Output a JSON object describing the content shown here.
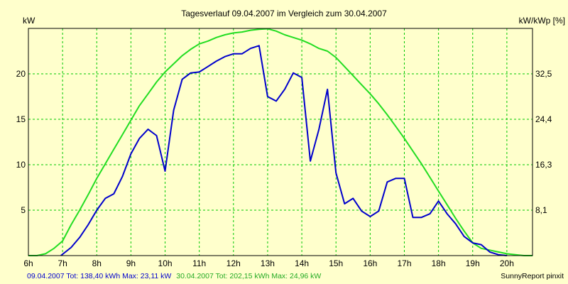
{
  "chart_data": {
    "type": "line",
    "title": "Tagesverlauf 09.04.2007 im Vergleich zum 30.04.2007",
    "ylabel_left": "kW",
    "ylabel_right": "kW/kWp [%]",
    "xlim": [
      6,
      20.75
    ],
    "ylim": [
      0,
      25
    ],
    "x_ticks": [
      "6h",
      "7h",
      "8h",
      "9h",
      "10h",
      "11h",
      "12h",
      "13h",
      "14h",
      "15h",
      "16h",
      "17h",
      "18h",
      "19h",
      "20h"
    ],
    "y_ticks_left": [
      "5",
      "10",
      "15",
      "20"
    ],
    "y_ticks_right": [
      "8,1",
      "16,3",
      "24,4",
      "32,5"
    ],
    "y_ticks_right_values": [
      5,
      10,
      15,
      20
    ],
    "grid": true,
    "colors": {
      "background": "#ffffcc",
      "plot_border": "#000000",
      "grid": "#00c800",
      "series_1": "#0000cc",
      "series_2": "#22dd22"
    },
    "series": [
      {
        "name": "09.04.2007",
        "color": "#0000cc",
        "x": [
          6.95,
          7.25,
          7.5,
          7.75,
          8.0,
          8.25,
          8.5,
          8.75,
          9.0,
          9.25,
          9.5,
          9.75,
          10.0,
          10.25,
          10.5,
          10.75,
          11.0,
          11.25,
          11.5,
          11.75,
          12.0,
          12.25,
          12.5,
          12.75,
          13.0,
          13.25,
          13.5,
          13.75,
          14.0,
          14.25,
          14.5,
          14.75,
          15.0,
          15.25,
          15.5,
          15.75,
          16.0,
          16.25,
          16.5,
          16.75,
          17.0,
          17.25,
          17.5,
          17.75,
          18.0,
          18.25,
          18.5,
          18.75,
          19.0,
          19.25,
          19.5,
          19.75,
          20.0
        ],
        "y": [
          0,
          0.9,
          2.0,
          3.4,
          5.0,
          6.3,
          6.8,
          8.7,
          11.2,
          12.9,
          13.9,
          13.2,
          9.3,
          16.0,
          19.4,
          20.1,
          20.2,
          20.8,
          21.4,
          21.9,
          22.2,
          22.2,
          22.8,
          23.1,
          17.5,
          17.0,
          18.3,
          20.1,
          19.6,
          10.4,
          13.9,
          18.3,
          9.1,
          5.7,
          6.3,
          4.9,
          4.3,
          4.9,
          8.1,
          8.5,
          8.5,
          4.2,
          4.2,
          4.6,
          6.0,
          4.6,
          3.5,
          2.1,
          1.4,
          1.2,
          0.4,
          0.1,
          0
        ]
      },
      {
        "name": "30.04.2007",
        "color": "#22dd22",
        "x": [
          6.0,
          6.25,
          6.5,
          6.75,
          7.0,
          7.25,
          7.5,
          7.75,
          8.0,
          8.25,
          8.5,
          8.75,
          9.0,
          9.25,
          9.5,
          9.75,
          10.0,
          10.25,
          10.5,
          10.75,
          11.0,
          11.25,
          11.5,
          11.75,
          12.0,
          12.25,
          12.5,
          12.75,
          13.0,
          13.25,
          13.5,
          13.75,
          14.0,
          14.25,
          14.5,
          14.75,
          15.0,
          15.25,
          15.5,
          15.75,
          16.0,
          16.25,
          16.5,
          16.75,
          17.0,
          17.25,
          17.5,
          17.75,
          18.0,
          18.25,
          18.5,
          18.75,
          19.0,
          19.25,
          19.5,
          19.75,
          20.0,
          20.25,
          20.5,
          20.75
        ],
        "y": [
          0,
          0,
          0.2,
          0.8,
          1.6,
          3.4,
          5.0,
          6.7,
          8.5,
          10.1,
          11.7,
          13.3,
          14.9,
          16.5,
          17.8,
          19.1,
          20.2,
          21.1,
          22.0,
          22.7,
          23.3,
          23.6,
          24.0,
          24.3,
          24.5,
          24.6,
          24.8,
          24.9,
          24.96,
          24.7,
          24.3,
          24.0,
          23.7,
          23.3,
          22.8,
          22.5,
          21.8,
          20.8,
          19.8,
          18.8,
          17.8,
          16.7,
          15.5,
          14.2,
          12.9,
          11.5,
          10.1,
          8.6,
          7.1,
          5.6,
          4.1,
          2.7,
          1.4,
          0.8,
          0.6,
          0.4,
          0.2,
          0.1,
          0,
          0
        ]
      }
    ]
  },
  "footer": {
    "series_1_summary": "09.04.2007 Tot: 138,40 kWh Max: 23,11 kW",
    "series_2_summary": "30.04.2007 Tot: 202,15 kWh Max: 24,96 kW",
    "credit": "SunnyReport pinxit"
  }
}
